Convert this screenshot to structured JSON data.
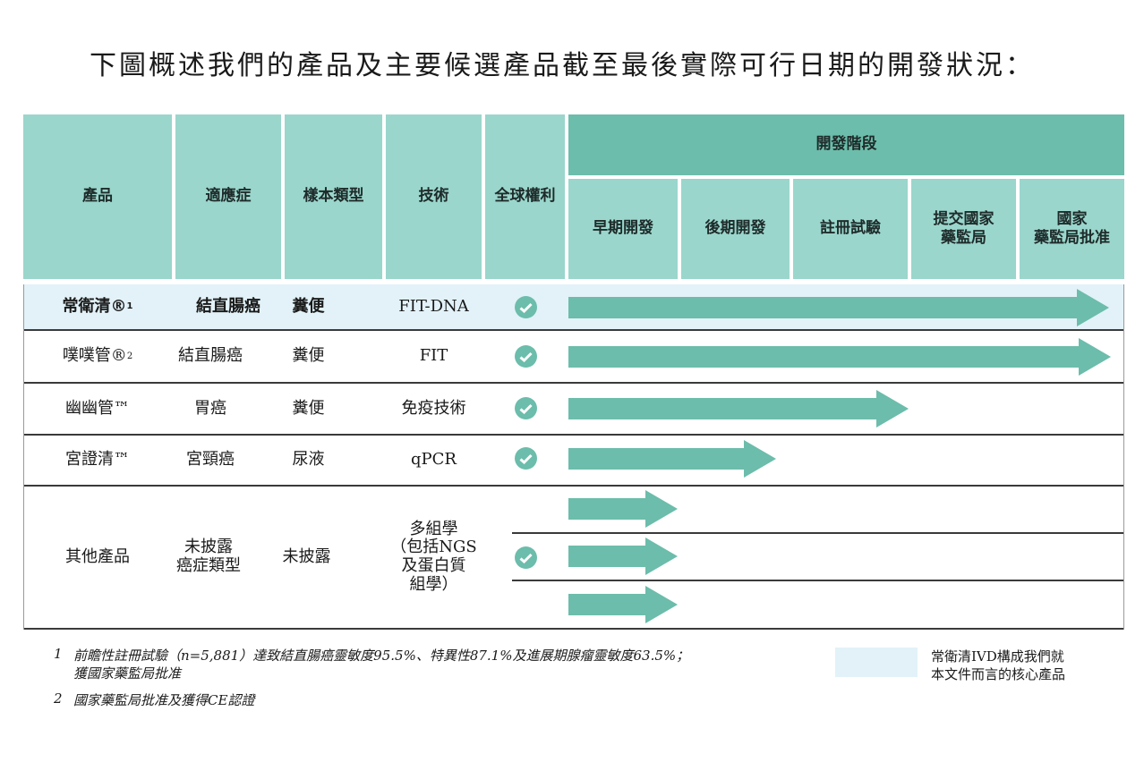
{
  "title": "下圖概述我們的產品及主要候選產品截至最後實際可行日期的開發狀況：",
  "headers": {
    "product": "產品",
    "indication": "適應症",
    "sample": "樣本類型",
    "technology": "技術",
    "rights": "全球權利",
    "stages_group": "開發階段",
    "stage_early": "早期開發",
    "stage_late": "後期開發",
    "stage_registration": "註冊試驗",
    "stage_submit_1": "提交國家",
    "stage_submit_2": "藥監局",
    "stage_approved_1": "國家",
    "stage_approved_2": "藥監局批准"
  },
  "rows": [
    {
      "product": "常衛清®",
      "sup": "1",
      "indication": "結直腸癌",
      "sample": "糞便",
      "technology": "FIT-DNA",
      "progress_stage": 5
    },
    {
      "product": "噗噗管®",
      "sup": "2",
      "indication": "結直腸癌",
      "sample": "糞便",
      "technology": "FIT",
      "progress_stage": 5
    },
    {
      "product": "幽幽管™",
      "sup": "",
      "indication": "胃癌",
      "sample": "糞便",
      "technology": "免疫技術",
      "progress_stage": 3
    },
    {
      "product": "宮證清™",
      "sup": "",
      "indication": "宮頸癌",
      "sample": "尿液",
      "technology": "qPCR",
      "progress_stage": 2
    },
    {
      "product": "其他產品",
      "indication_1": "未披露",
      "indication_2": "癌症類型",
      "sample": "未披露",
      "tech_1": "多組學",
      "tech_2": "（包括NGS",
      "tech_3": "及蛋白質",
      "tech_4": "組學）",
      "progress_stage": 1
    }
  ],
  "footnotes": {
    "n1_num": "1",
    "n1_line1": "前瞻性註冊試驗（n=5,881）達致結直腸癌靈敏度95.5%、特異性87.1%及進展期腺瘤靈敏度63.5%；",
    "n1_line2": "獲國家藥監局批准",
    "n2_num": "2",
    "n2_line1": "國家藥監局批准及獲得CE認證"
  },
  "legend": {
    "line1": "常衛清IVD構成我們就",
    "line2": "本文件而言的核心產品"
  },
  "colors": {
    "header_light": "#9ad6cc",
    "header_dark": "#6cbdab",
    "arrow": "#6cbdab",
    "highlight": "#e2f2f8"
  },
  "icons": {
    "rights": "check-circle-icon",
    "progress": "arrow-right-icon"
  }
}
